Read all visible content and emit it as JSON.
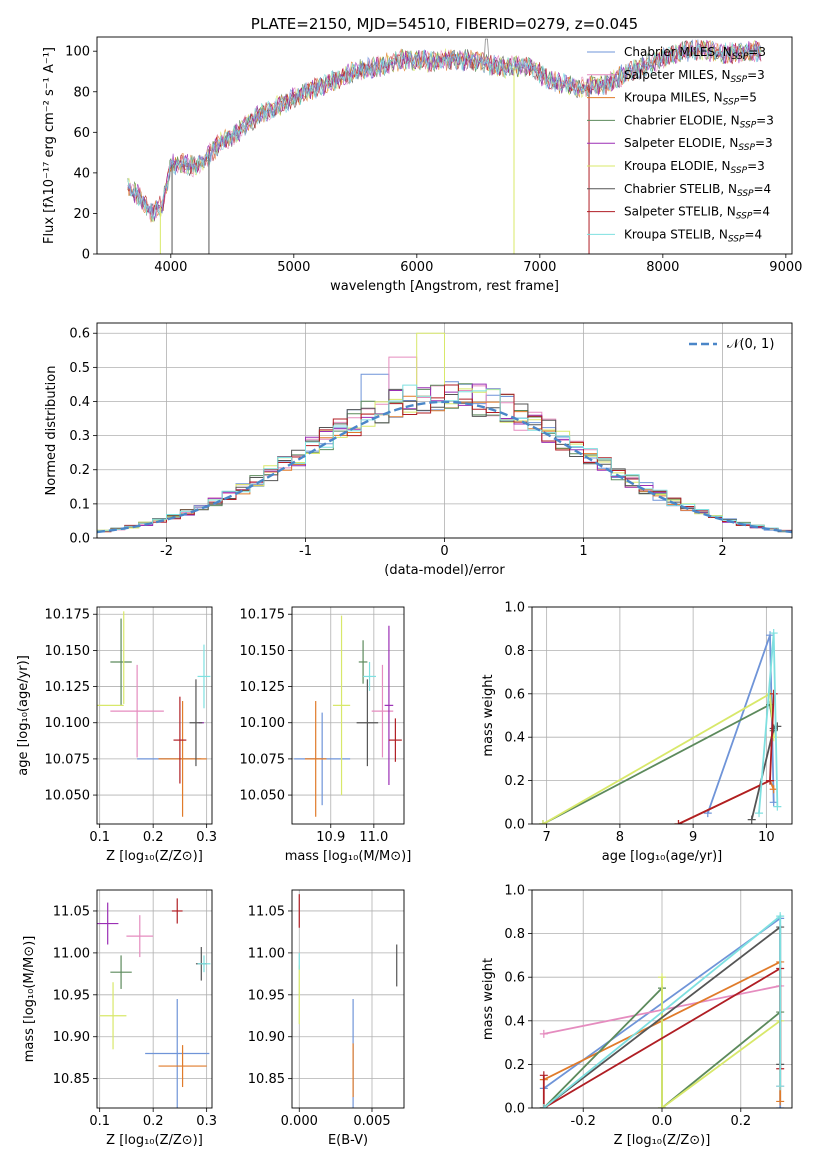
{
  "colors": {
    "Chabrier MILES": "#6f94d8",
    "Salpeter MILES": "#e58cbf",
    "Kroupa MILES": "#e07b2a",
    "Chabrier ELODIE": "#5c8a5c",
    "Salpeter ELODIE": "#9b2fb5",
    "Kroupa ELODIE": "#d8e86a",
    "Chabrier STELIB": "#555555",
    "Salpeter STELIB": "#b01e24",
    "Kroupa STELIB": "#7ee0e0",
    "normal_curve": "#4a86c8",
    "grid": "#b0b0b0"
  },
  "chart_data": [
    {
      "id": "spectrum",
      "type": "line",
      "title": "PLATE=2150, MJD=54510, FIBERID=0279, z=0.045",
      "xlabel": "wavelength [Angstrom, rest frame]",
      "ylabel": "Flux [fλ10⁻¹⁷ erg cm⁻² s⁻¹ A⁻¹]",
      "xlim": [
        3400,
        9050
      ],
      "ylim": [
        0,
        107
      ],
      "xticks": [
        4000,
        5000,
        6000,
        7000,
        8000,
        9000
      ],
      "yticks": [
        0,
        20,
        40,
        60,
        80,
        100
      ],
      "grid": false,
      "legend_position": "right",
      "legend": [
        {
          "model": "Chabrier MILES",
          "label": "Chabrier MILES, N",
          "nssp": "=3"
        },
        {
          "model": "Salpeter MILES",
          "label": "Salpeter MILES, N",
          "nssp": "=3"
        },
        {
          "model": "Kroupa MILES",
          "label": "Kroupa MILES, N",
          "nssp": "=5"
        },
        {
          "model": "Chabrier ELODIE",
          "label": "Chabrier ELODIE, N",
          "nssp": "=3"
        },
        {
          "model": "Salpeter ELODIE",
          "label": "Salpeter ELODIE, N",
          "nssp": "=3"
        },
        {
          "model": "Kroupa ELODIE",
          "label": "Kroupa ELODIE, N",
          "nssp": "=3"
        },
        {
          "model": "Chabrier STELIB",
          "label": "Chabrier STELIB, N",
          "nssp": "=4"
        },
        {
          "model": "Salpeter STELIB",
          "label": "Salpeter STELIB, N",
          "nssp": "=4"
        },
        {
          "model": "Kroupa STELIB",
          "label": "Kroupa STELIB, N",
          "nssp": "=4"
        }
      ],
      "legend_subscript": "SSP",
      "continuum": {
        "x": [
          3650,
          3750,
          3850,
          3930,
          4000,
          4100,
          4200,
          4300,
          4400,
          4500,
          4700,
          4900,
          5100,
          5300,
          5500,
          5700,
          5900,
          6100,
          6300,
          6500,
          6700,
          6900,
          7100,
          7300,
          7500,
          7700,
          7900,
          8100,
          8300,
          8500,
          8800
        ],
        "y": [
          33,
          28,
          20,
          24,
          44,
          45,
          43,
          48,
          55,
          58,
          68,
          74,
          80,
          85,
          90,
          93,
          96,
          95,
          96,
          95,
          92,
          93,
          85,
          82,
          83,
          89,
          94,
          99,
          101,
          99,
          100
        ]
      },
      "dropouts": [
        {
          "x": 3915,
          "color_model": "Kroupa ELODIE"
        },
        {
          "x": 4010,
          "color_model": "Chabrier STELIB"
        },
        {
          "x": 4310,
          "color_model": "Chabrier STELIB"
        },
        {
          "x": 6790,
          "color_model": "Kroupa ELODIE"
        },
        {
          "x": 7400,
          "color_model": "Salpeter STELIB"
        }
      ],
      "peak": {
        "x": 6563,
        "y": 106
      }
    },
    {
      "id": "residuals",
      "type": "line",
      "xlabel": "(data-model)/error",
      "ylabel": "Normed distribution",
      "xlim": [
        -2.5,
        2.5
      ],
      "ylim": [
        0,
        0.63
      ],
      "xticks": [
        -2,
        -1,
        0,
        1,
        2
      ],
      "yticks": [
        0.0,
        0.1,
        0.2,
        0.3,
        0.4,
        0.5,
        0.6
      ],
      "grid": true,
      "legend_position": "top-right",
      "legend_label": "𝒩(0, 1)",
      "bin_width": 0.1,
      "peak_bins": [
        {
          "model": "Salpeter MILES",
          "x": -0.3,
          "value": 0.53
        },
        {
          "model": "Kroupa ELODIE",
          "x": -0.1,
          "value": 0.6
        },
        {
          "model": "Chabrier MILES",
          "x": -0.5,
          "value": 0.48
        }
      ]
    },
    {
      "id": "Z-age",
      "type": "scatter",
      "xlabel": "Z [log₁₀(Z/Z⊙)]",
      "ylabel": "age  [log₁₀(age/yr)]",
      "xlim": [
        0.095,
        0.31
      ],
      "ylim": [
        10.03,
        10.18
      ],
      "xticks": [
        0.1,
        0.2,
        0.3
      ],
      "yticks": [
        10.05,
        10.075,
        10.1,
        10.125,
        10.15,
        10.175
      ],
      "grid": true,
      "points": [
        {
          "model": "Chabrier MILES",
          "x": 0.23,
          "y": 10.075,
          "xerr": 0.06,
          "yerr": 0.0
        },
        {
          "model": "Salpeter MILES",
          "x": 0.17,
          "y": 10.108,
          "xerr": 0.05,
          "yerr": 0.032
        },
        {
          "model": "Kroupa MILES",
          "x": 0.255,
          "y": 10.075,
          "xerr": 0.045,
          "yerr": 0.04
        },
        {
          "model": "Chabrier ELODIE",
          "x": 0.14,
          "y": 10.142,
          "xerr": 0.02,
          "yerr": 0.03
        },
        {
          "model": "Salpeter ELODIE",
          "x": 0.29,
          "y": 10.1,
          "xerr": 0.005,
          "yerr": 0.0
        },
        {
          "model": "Kroupa ELODIE",
          "x": 0.12,
          "y": 10.112,
          "xerr": 0.025,
          "yerr": 0.0
        },
        {
          "model": "Kroupa ELODIE",
          "x": 0.145,
          "y": 10.145,
          "xerr": 0.0,
          "yerr": 0.032
        },
        {
          "model": "Chabrier STELIB",
          "x": 0.28,
          "y": 10.1,
          "xerr": 0.012,
          "yerr": 0.03
        },
        {
          "model": "Salpeter STELIB",
          "x": 0.25,
          "y": 10.088,
          "xerr": 0.012,
          "yerr": 0.03
        },
        {
          "model": "Kroupa STELIB",
          "x": 0.295,
          "y": 10.132,
          "xerr": 0.012,
          "yerr": 0.022
        }
      ]
    },
    {
      "id": "mass-age",
      "type": "scatter",
      "xlabel": "mass [log₁₀(M/M⊙)]",
      "ylabel": "",
      "xlim": [
        10.81,
        11.07
      ],
      "ylim": [
        10.03,
        10.18
      ],
      "xticks": [
        10.9,
        11.0
      ],
      "yticks": [
        10.05,
        10.075,
        10.1,
        10.125,
        10.15,
        10.175
      ],
      "grid": true,
      "points": [
        {
          "model": "Chabrier MILES",
          "x": 10.88,
          "y": 10.075,
          "xerr": 0.065,
          "yerr": 0.032
        },
        {
          "model": "Salpeter MILES",
          "x": 11.02,
          "y": 10.108,
          "xerr": 0.025,
          "yerr": 0.032
        },
        {
          "model": "Kroupa MILES",
          "x": 10.865,
          "y": 10.075,
          "xerr": 0.025,
          "yerr": 0.04
        },
        {
          "model": "Chabrier ELODIE",
          "x": 10.975,
          "y": 10.142,
          "xerr": 0.01,
          "yerr": 0.015
        },
        {
          "model": "Salpeter ELODIE",
          "x": 11.035,
          "y": 10.112,
          "xerr": 0.01,
          "yerr": 0.055
        },
        {
          "model": "Kroupa ELODIE",
          "x": 10.925,
          "y": 10.112,
          "xerr": 0.02,
          "yerr": 0.062
        },
        {
          "model": "Chabrier STELIB",
          "x": 10.985,
          "y": 10.1,
          "xerr": 0.025,
          "yerr": 0.03
        },
        {
          "model": "Salpeter STELIB",
          "x": 11.05,
          "y": 10.088,
          "xerr": 0.015,
          "yerr": 0.015
        },
        {
          "model": "Kroupa STELIB",
          "x": 10.99,
          "y": 10.132,
          "xerr": 0.015,
          "yerr": 0.01
        }
      ]
    },
    {
      "id": "age-massweight",
      "type": "line",
      "xlabel": "age  [log₁₀(age/yr)]",
      "ylabel": "mass weight",
      "xlim": [
        6.8,
        10.35
      ],
      "ylim": [
        0,
        1.0
      ],
      "xticks": [
        7,
        8,
        9,
        10
      ],
      "yticks": [
        0.0,
        0.2,
        0.4,
        0.6,
        0.8,
        1.0
      ],
      "grid": true,
      "series": [
        {
          "model": "Chabrier MILES",
          "x": [
            9.2,
            10.05,
            10.1
          ],
          "y": [
            0.05,
            0.87,
            0.1
          ]
        },
        {
          "model": "Kroupa MILES",
          "x": [
            8.8,
            10.05,
            10.1
          ],
          "y": [
            0.0,
            0.2,
            0.16
          ]
        },
        {
          "model": "Chabrier ELODIE",
          "x": [
            6.95,
            10.05,
            10.1
          ],
          "y": [
            0.0,
            0.55,
            0.43
          ]
        },
        {
          "model": "Kroupa ELODIE",
          "x": [
            6.95,
            10.05,
            10.1
          ],
          "y": [
            0.0,
            0.6,
            0.4
          ]
        },
        {
          "model": "Chabrier STELIB",
          "x": [
            9.8,
            10.1,
            10.15
          ],
          "y": [
            0.02,
            0.44,
            0.45
          ]
        },
        {
          "model": "Salpeter STELIB",
          "x": [
            8.8,
            10.05,
            10.1
          ],
          "y": [
            0.0,
            0.2,
            0.6
          ]
        },
        {
          "model": "Kroupa STELIB",
          "x": [
            9.9,
            10.1,
            10.15
          ],
          "y": [
            0.05,
            0.88,
            0.08
          ]
        }
      ]
    },
    {
      "id": "Z-mass",
      "type": "scatter",
      "xlabel": "Z [log₁₀(Z/Z⊙)]",
      "ylabel": "mass [log₁₀(M/M⊙)]",
      "xlim": [
        0.095,
        0.31
      ],
      "ylim": [
        10.815,
        11.075
      ],
      "xticks": [
        0.1,
        0.2,
        0.3
      ],
      "yticks": [
        10.85,
        10.9,
        10.95,
        11.0,
        11.05
      ],
      "grid": true,
      "points": [
        {
          "model": "Chabrier MILES",
          "x": 0.245,
          "y": 10.88,
          "xerr": 0.06,
          "yerr": 0.065
        },
        {
          "model": "Salpeter MILES",
          "x": 0.175,
          "y": 11.02,
          "xerr": 0.025,
          "yerr": 0.025
        },
        {
          "model": "Kroupa MILES",
          "x": 0.255,
          "y": 10.865,
          "xerr": 0.045,
          "yerr": 0.025
        },
        {
          "model": "Chabrier ELODIE",
          "x": 0.14,
          "y": 10.977,
          "xerr": 0.02,
          "yerr": 0.02
        },
        {
          "model": "Salpeter ELODIE",
          "x": 0.115,
          "y": 11.035,
          "xerr": 0.02,
          "yerr": 0.025
        },
        {
          "model": "Kroupa ELODIE",
          "x": 0.125,
          "y": 10.925,
          "xerr": 0.025,
          "yerr": 0.04
        },
        {
          "model": "Chabrier STELIB",
          "x": 0.29,
          "y": 10.987,
          "xerr": 0.01,
          "yerr": 0.02
        },
        {
          "model": "Salpeter STELIB",
          "x": 0.245,
          "y": 11.05,
          "xerr": 0.01,
          "yerr": 0.015
        },
        {
          "model": "Kroupa STELIB",
          "x": 0.295,
          "y": 10.987,
          "xerr": 0.012,
          "yerr": 0.01
        }
      ]
    },
    {
      "id": "EBV-mass",
      "type": "scatter",
      "xlabel": "E(B-V)",
      "ylabel": "",
      "xlim": [
        -0.0005,
        0.0072
      ],
      "ylim": [
        10.815,
        11.075
      ],
      "xticks": [
        0.0,
        0.005
      ],
      "yticks": [
        10.85,
        10.9,
        10.95,
        11.0,
        11.05
      ],
      "grid": true,
      "points": [
        {
          "model": "Chabrier MILES",
          "x": 0.0037,
          "y": 10.88,
          "xerr": 0.0,
          "yerr": 0.065
        },
        {
          "model": "Kroupa MILES",
          "x": 0.0037,
          "y": 10.86,
          "xerr": 0.0,
          "yerr": 0.032
        },
        {
          "model": "Kroupa ELODIE",
          "x": 0.0,
          "y": 10.95,
          "xerr": 0.0,
          "yerr": 0.035
        },
        {
          "model": "Chabrier STELIB",
          "x": 0.0067,
          "y": 10.985,
          "xerr": 0.0,
          "yerr": 0.025
        },
        {
          "model": "Salpeter STELIB",
          "x": 0.0,
          "y": 11.05,
          "xerr": 0.0,
          "yerr": 0.02
        },
        {
          "model": "Kroupa STELIB",
          "x": 0.0,
          "y": 10.99,
          "xerr": 0.0,
          "yerr": 0.01
        }
      ]
    },
    {
      "id": "Z-massweight",
      "type": "line",
      "xlabel": "Z [log₁₀(Z/Z⊙)]",
      "ylabel": "mass weight",
      "xlim": [
        -0.33,
        0.33
      ],
      "ylim": [
        0,
        1.0
      ],
      "xticks": [
        -0.2,
        0.0,
        0.2
      ],
      "yticks": [
        0.0,
        0.2,
        0.4,
        0.6,
        0.8,
        1.0
      ],
      "grid": true,
      "series": [
        {
          "model": "Chabrier MILES",
          "x": [
            -0.3,
            0.3,
            0.3
          ],
          "y": [
            0.09,
            0.87,
            0.0
          ]
        },
        {
          "model": "Salpeter MILES",
          "x": [
            -0.3,
            0.3,
            0.3
          ],
          "y": [
            0.34,
            0.56,
            0.1
          ]
        },
        {
          "model": "Kroupa MILES",
          "x": [
            -0.3,
            0.3,
            0.3
          ],
          "y": [
            0.13,
            0.67,
            0.03
          ]
        },
        {
          "model": "Chabrier ELODIE",
          "x": [
            -0.3,
            0.0,
            0.0,
            0.3
          ],
          "y": [
            0.0,
            0.55,
            0.0,
            0.44
          ]
        },
        {
          "model": "Kroupa ELODIE",
          "x": [
            0.0,
            0.0,
            0.3
          ],
          "y": [
            0.6,
            0.0,
            0.4
          ]
        },
        {
          "model": "Chabrier STELIB",
          "x": [
            -0.3,
            0.3,
            0.3
          ],
          "y": [
            0.0,
            0.83,
            0.2
          ]
        },
        {
          "model": "Salpeter STELIB",
          "x": [
            -0.3,
            -0.3,
            0.3,
            0.3
          ],
          "y": [
            0.15,
            0.0,
            0.64,
            0.18
          ]
        },
        {
          "model": "Kroupa STELIB",
          "x": [
            -0.3,
            0.3,
            0.3
          ],
          "y": [
            0.0,
            0.88,
            0.1
          ]
        }
      ]
    }
  ]
}
